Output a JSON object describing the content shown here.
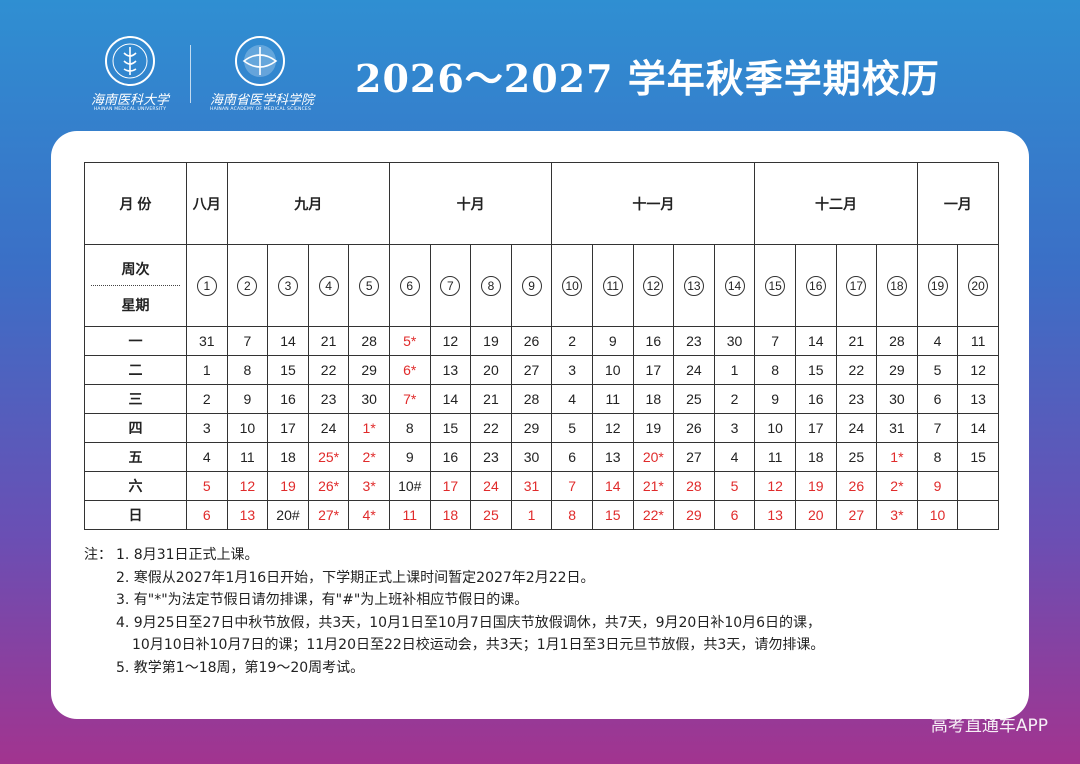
{
  "header": {
    "logo1": {
      "cn": "海南医科大学",
      "en": "HAINAN MEDICAL UNIVERSITY"
    },
    "logo2": {
      "cn": "海南省医学科学院",
      "en": "HAINAN ACADEMY OF MEDICAL SCIENCES"
    },
    "title": "2026～2027 学年秋季学期校历"
  },
  "calendar": {
    "month_label": "月 份",
    "months": [
      {
        "label": "八月",
        "span": 1
      },
      {
        "label": "九月",
        "span": 4
      },
      {
        "label": "十月",
        "span": 4
      },
      {
        "label": "十一月",
        "span": 5
      },
      {
        "label": "十二月",
        "span": 4
      },
      {
        "label": "一月",
        "span": 2
      }
    ],
    "week_label": "周次",
    "weekday_label": "星期",
    "weeks": [
      "1",
      "2",
      "3",
      "4",
      "5",
      "6",
      "7",
      "8",
      "9",
      "10",
      "11",
      "12",
      "13",
      "14",
      "15",
      "16",
      "17",
      "18",
      "19",
      "20"
    ],
    "rows": [
      {
        "day": "一",
        "cells": [
          "31",
          "7",
          "14",
          "21",
          "28",
          "5*",
          "12",
          "19",
          "26",
          "2",
          "9",
          "16",
          "23",
          "30",
          "7",
          "14",
          "21",
          "28",
          "4",
          "11"
        ]
      },
      {
        "day": "二",
        "cells": [
          "1",
          "8",
          "15",
          "22",
          "29",
          "6*",
          "13",
          "20",
          "27",
          "3",
          "10",
          "17",
          "24",
          "1",
          "8",
          "15",
          "22",
          "29",
          "5",
          "12"
        ]
      },
      {
        "day": "三",
        "cells": [
          "2",
          "9",
          "16",
          "23",
          "30",
          "7*",
          "14",
          "21",
          "28",
          "4",
          "11",
          "18",
          "25",
          "2",
          "9",
          "16",
          "23",
          "30",
          "6",
          "13"
        ]
      },
      {
        "day": "四",
        "cells": [
          "3",
          "10",
          "17",
          "24",
          "1*",
          "8",
          "15",
          "22",
          "29",
          "5",
          "12",
          "19",
          "26",
          "3",
          "10",
          "17",
          "24",
          "31",
          "7",
          "14"
        ]
      },
      {
        "day": "五",
        "cells": [
          "4",
          "11",
          "18",
          "25*",
          "2*",
          "9",
          "16",
          "23",
          "30",
          "6",
          "13",
          "20*",
          "27",
          "4",
          "11",
          "18",
          "25",
          "1*",
          "8",
          "15"
        ]
      },
      {
        "day": "六",
        "cells": [
          "5",
          "12",
          "19",
          "26*",
          "3*",
          "10#",
          "17",
          "24",
          "31",
          "7",
          "14",
          "21*",
          "28",
          "5",
          "12",
          "19",
          "26",
          "2*",
          "9",
          ""
        ]
      },
      {
        "day": "日",
        "cells": [
          "6",
          "13",
          "20#",
          "27*",
          "4*",
          "11",
          "18",
          "25",
          "1",
          "8",
          "15",
          "22*",
          "29",
          "6",
          "13",
          "20",
          "27",
          "3*",
          "10",
          ""
        ]
      }
    ],
    "holiday_color": "#e02b2b"
  },
  "notes": {
    "label": "注：",
    "items": [
      "1. 8月31日正式上课。",
      "2. 寒假从2027年1月16日开始，下学期正式上课时间暂定2027年2月22日。",
      "3. 有\"*\"为法定节假日请勿排课，有\"#\"为上班补相应节假日的课。",
      "4. 9月25日至27日中秋节放假，共3天，10月1日至10月7日国庆节放假调休，共7天，9月20日补10月6日的课，",
      "10月10日补10月7日的课；11月20日至22日校运动会，共3天；1月1日至3日元旦节放假，共3天，请勿排课。",
      "5. 教学第1～18周，第19～20周考试。"
    ]
  },
  "watermark": "高考直通车APP"
}
